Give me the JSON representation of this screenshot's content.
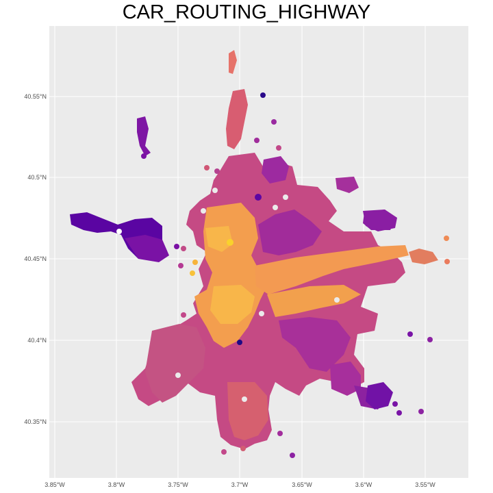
{
  "title": "CAR_ROUTING_HIGHWAY",
  "axes": {
    "x_ticks": [
      "3.85°W",
      "3.8°W",
      "3.75°W",
      "3.7°W",
      "3.65°W",
      "3.6°W",
      "3.55°W"
    ],
    "y_ticks": [
      "40.55°N",
      "40.5°N",
      "40.45°N",
      "40.4°N",
      "40.35°N"
    ]
  },
  "map": {
    "type": "hexbin-map",
    "palette": "plasma",
    "background": "#ebebeb",
    "grid": "#ffffff"
  }
}
